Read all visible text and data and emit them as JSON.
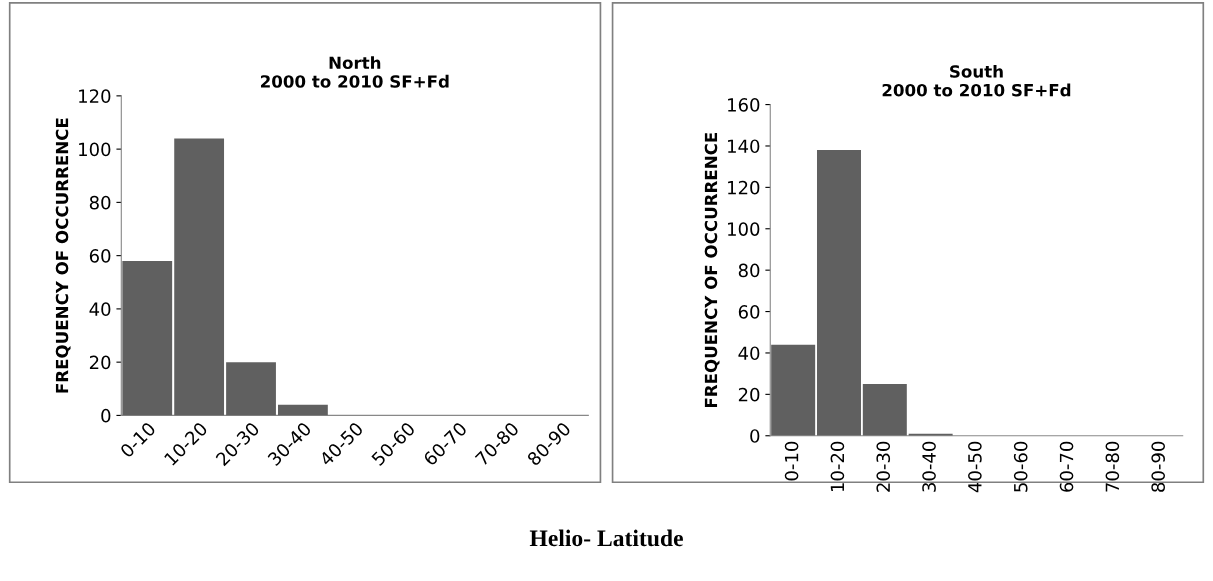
{
  "chart_data": [
    {
      "type": "bar",
      "title": "North\n2000 to 2010 SF+Fd",
      "ylabel": "FREQUENCY OF OCCURRENCE",
      "categories": [
        "0-10",
        "10-20",
        "20-30",
        "30-40",
        "40-50",
        "50-60",
        "60-70",
        "70-80",
        "80-90"
      ],
      "values": [
        58,
        104,
        20,
        4,
        0,
        0,
        0,
        0,
        0
      ],
      "color": "#606060",
      "ylim": [
        0,
        120
      ],
      "yticks": [
        0,
        20,
        40,
        60,
        80,
        100,
        120
      ],
      "grid": false,
      "annotations": [
        "Helio- Latitude"
      ]
    },
    {
      "type": "bar",
      "title": "South\n2000 to 2010 SF+Fd",
      "ylabel": "FREQUENCY OF OCCURRENCE",
      "categories": [
        "0-10",
        "10-20",
        "20-30",
        "30-40",
        "40-50",
        "50-60",
        "60-70",
        "70-80",
        "80-90"
      ],
      "values": [
        44,
        138,
        25,
        1,
        0,
        0,
        0,
        0,
        0
      ],
      "color": "#606060",
      "ylim": [
        0,
        160
      ],
      "yticks": [
        0,
        20,
        40,
        60,
        80,
        100,
        120,
        140,
        160
      ],
      "grid": false
    }
  ]
}
